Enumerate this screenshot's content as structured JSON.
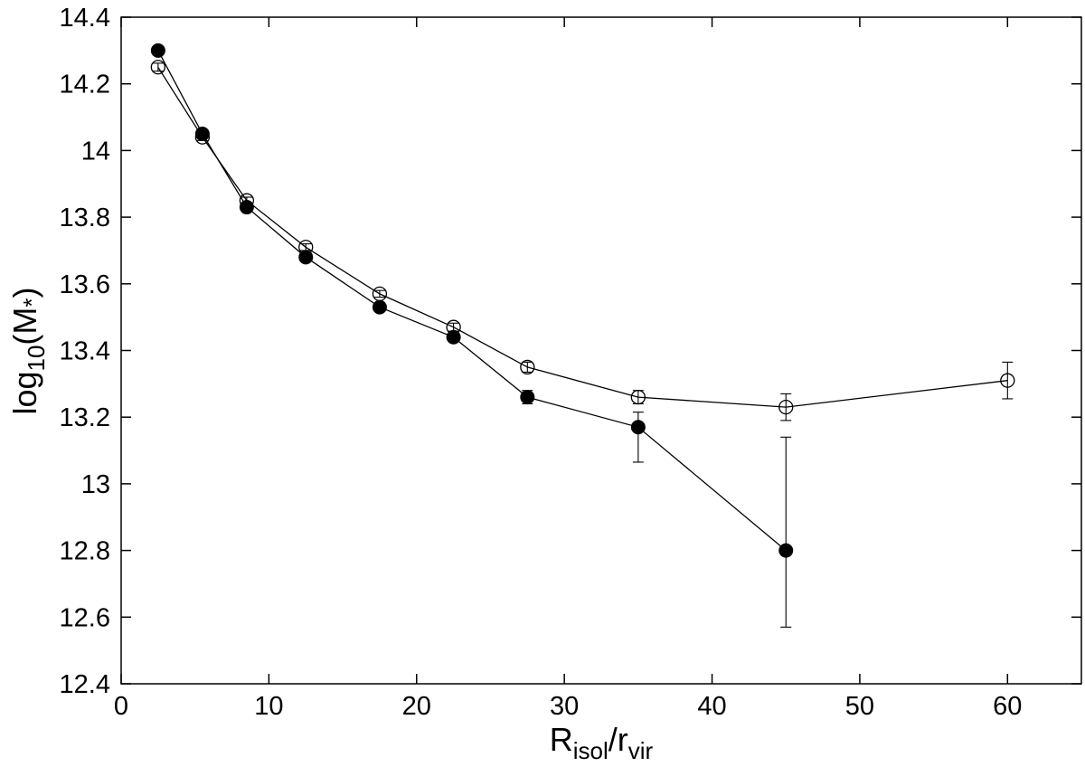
{
  "chart_data": {
    "type": "scatter",
    "title": "",
    "xlabel": {
      "main": "R",
      "sub1": "isol",
      "mid": "/r",
      "sub2": "vir"
    },
    "ylabel": {
      "pre": "log",
      "sub": "10",
      "post": "(M",
      "star": "*",
      "close": ")"
    },
    "xlim": [
      0,
      65
    ],
    "ylim": [
      12.4,
      14.4
    ],
    "xticks": [
      0,
      10,
      20,
      30,
      40,
      50,
      60
    ],
    "xtick_labels": [
      "0",
      "10",
      "20",
      "30",
      "40",
      "50",
      "60"
    ],
    "yticks": [
      12.4,
      12.6,
      12.8,
      13.0,
      13.2,
      13.4,
      13.6,
      13.8,
      14.0,
      14.2,
      14.4
    ],
    "ytick_labels": [
      "12.4",
      "12.6",
      "12.8",
      "13",
      "13.2",
      "13.4",
      "13.6",
      "13.8",
      "14",
      "14.2",
      "14.4"
    ],
    "grid": false,
    "series": [
      {
        "marker": "open-circle",
        "color": "#000000",
        "x": [
          2.5,
          5.5,
          8.5,
          12.5,
          17.5,
          22.5,
          27.5,
          35,
          45,
          60
        ],
        "y": [
          14.25,
          14.04,
          13.85,
          13.71,
          13.57,
          13.47,
          13.35,
          13.26,
          13.23,
          13.31
        ],
        "err": [
          0.012,
          0.01,
          0.01,
          0.01,
          0.01,
          0.012,
          0.015,
          0.02,
          0.04,
          0.055
        ]
      },
      {
        "marker": "filled-circle",
        "color": "#000000",
        "x": [
          2.5,
          5.5,
          8.5,
          12.5,
          17.5,
          22.5,
          27.5,
          35,
          45
        ],
        "y": [
          14.3,
          14.05,
          13.83,
          13.68,
          13.53,
          13.44,
          13.26,
          13.17,
          12.8
        ],
        "err": [
          0.0,
          0.0,
          0.0,
          0.0,
          0.0,
          0.0,
          0.02,
          0.05,
          0.28
        ],
        "err_up": [
          0.0,
          0.0,
          0.0,
          0.0,
          0.0,
          0.0,
          0.02,
          0.045,
          0.34
        ],
        "err_down": [
          0.0,
          0.0,
          0.0,
          0.0,
          0.0,
          0.0,
          0.02,
          0.105,
          0.23
        ]
      }
    ]
  }
}
